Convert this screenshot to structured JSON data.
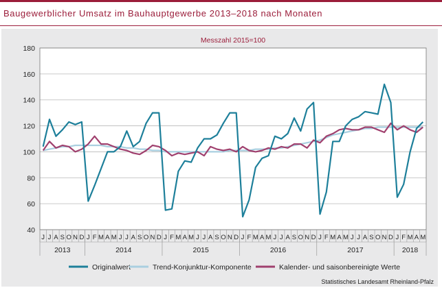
{
  "title": "Baugewerblicher Umsatz im Bauhauptgewerbe 2013–2018 nach Monaten",
  "source": "Statistisches Landesamt Rheinland-Pfalz",
  "colors": {
    "brand": "#9b1d3a",
    "original": "#1d7f9a",
    "trend": "#a9cfe0",
    "seasonal": "#a0406e"
  },
  "chart_data": {
    "type": "line",
    "subtitle": "Messzahl 2015=100",
    "ylim": [
      40,
      180
    ],
    "yticks": [
      40,
      60,
      80,
      100,
      120,
      140,
      160,
      180
    ],
    "grid": true,
    "legend_position": "bottom",
    "month_letters": [
      "J",
      "J",
      "A",
      "S",
      "O",
      "N",
      "D",
      "J",
      "F",
      "M",
      "A",
      "M",
      "J",
      "J",
      "A",
      "S",
      "O",
      "N",
      "D",
      "J",
      "F",
      "M",
      "A",
      "M",
      "J",
      "J",
      "A",
      "S",
      "O",
      "N",
      "D",
      "J",
      "F",
      "M",
      "A",
      "M",
      "J",
      "J",
      "A",
      "S",
      "O",
      "N",
      "D",
      "J",
      "F",
      "M",
      "A",
      "M",
      "J",
      "J",
      "A",
      "S",
      "O",
      "N",
      "D",
      "J",
      "F",
      "M",
      "A",
      "M"
    ],
    "years": [
      {
        "label": "2013",
        "months": 7
      },
      {
        "label": "2014",
        "months": 12
      },
      {
        "label": "2015",
        "months": 12
      },
      {
        "label": "2016",
        "months": 12
      },
      {
        "label": "2017",
        "months": 12
      },
      {
        "label": "2018",
        "months": 5
      }
    ],
    "series": [
      {
        "name": "Originalwert",
        "color_key": "original",
        "values": [
          104,
          125,
          112,
          117,
          123,
          121,
          123,
          62,
          74,
          87,
          100,
          100,
          104,
          116,
          104,
          108,
          122,
          130,
          130,
          55,
          56,
          85,
          93,
          92,
          103,
          110,
          110,
          113,
          122,
          130,
          130,
          50,
          63,
          88,
          95,
          97,
          112,
          110,
          114,
          126,
          116,
          133,
          138,
          52,
          69,
          108,
          108,
          120,
          125,
          127,
          131,
          130,
          129,
          152,
          138,
          65,
          75,
          100,
          118,
          123
        ]
      },
      {
        "name": "Trend-Konjunktur-Komponente",
        "color_key": "trend",
        "values": [
          101,
          102,
          103,
          104,
          104,
          105,
          105,
          105,
          105,
          105,
          104,
          104,
          104,
          103,
          103,
          102,
          102,
          101,
          101,
          100,
          100,
          100,
          100,
          100,
          100,
          100,
          100,
          100,
          100,
          101,
          101,
          101,
          101,
          102,
          102,
          102,
          103,
          103,
          104,
          105,
          106,
          107,
          108,
          109,
          111,
          113,
          114,
          115,
          116,
          117,
          118,
          118,
          119,
          119,
          119,
          119,
          119,
          119,
          119,
          119
        ]
      },
      {
        "name": "Kalender- und saisonbereinigte Werte",
        "color_key": "seasonal",
        "values": [
          101,
          108,
          103,
          105,
          104,
          100,
          102,
          106,
          112,
          106,
          106,
          104,
          102,
          101,
          99,
          98,
          101,
          105,
          104,
          101,
          97,
          99,
          98,
          99,
          100,
          97,
          104,
          102,
          101,
          102,
          100,
          104,
          101,
          100,
          101,
          103,
          102,
          104,
          103,
          106,
          106,
          103,
          109,
          107,
          112,
          114,
          117,
          118,
          117,
          117,
          119,
          119,
          117,
          115,
          122,
          117,
          120,
          117,
          115,
          119
        ]
      }
    ]
  }
}
